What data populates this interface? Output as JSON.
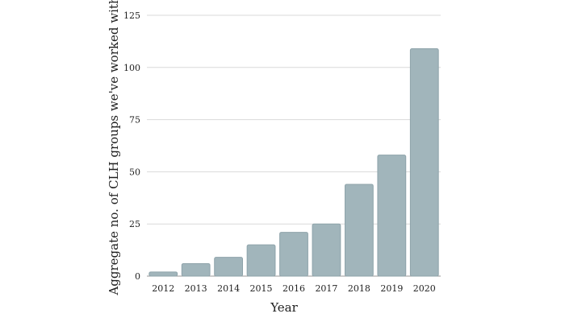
{
  "chart_data": {
    "type": "bar",
    "categories": [
      "2012",
      "2013",
      "2014",
      "2015",
      "2016",
      "2017",
      "2018",
      "2019",
      "2020"
    ],
    "values": [
      2,
      6,
      9,
      15,
      21,
      25,
      44,
      58,
      109
    ],
    "xlabel": "Year",
    "ylabel": "Aggregate no. of CLH groups we've worked with",
    "ylim": [
      0,
      125
    ],
    "yticks": [
      0,
      25,
      50,
      75,
      100,
      125
    ],
    "grid": true,
    "colors": {
      "bar_fill": "#a1b5bb",
      "bar_stroke": "#8ea3aa",
      "grid": "#d9d9d9",
      "text": "#1f1f1f"
    }
  }
}
